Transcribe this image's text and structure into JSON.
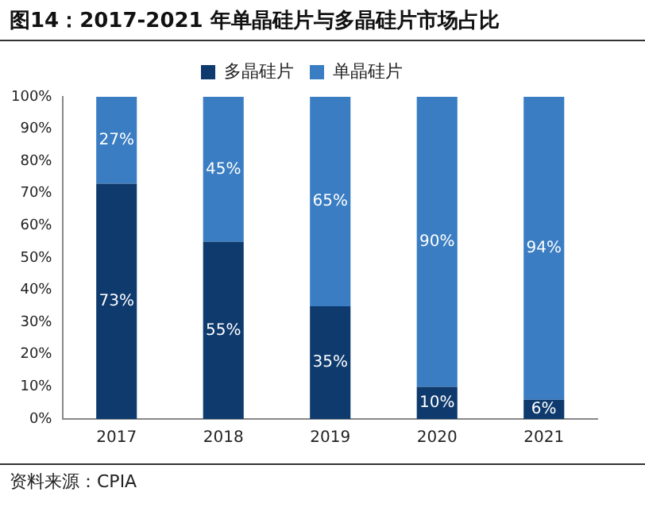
{
  "chart_data": {
    "type": "bar",
    "title": "图14：2017-2021 年单晶硅片与多晶硅片市场占比",
    "categories": [
      "2017",
      "2018",
      "2019",
      "2020",
      "2021"
    ],
    "stacked": true,
    "series": [
      {
        "name": "多晶硅片",
        "color": "#0e3a6e",
        "values": [
          73,
          55,
          35,
          10,
          6
        ],
        "value_labels": [
          "73%",
          "55%",
          "35%",
          "10%",
          "6%"
        ]
      },
      {
        "name": "单晶硅片",
        "color": "#3a7dc2",
        "values": [
          27,
          45,
          65,
          90,
          94
        ],
        "value_labels": [
          "27%",
          "45%",
          "65%",
          "90%",
          "94%"
        ]
      }
    ],
    "ylim": [
      0,
      100
    ],
    "yticks": [
      {
        "value": 0,
        "label": "0%"
      },
      {
        "value": 10,
        "label": "10%"
      },
      {
        "value": 20,
        "label": "20%"
      },
      {
        "value": 30,
        "label": "30%"
      },
      {
        "value": 40,
        "label": "40%"
      },
      {
        "value": 50,
        "label": "50%"
      },
      {
        "value": 60,
        "label": "60%"
      },
      {
        "value": 70,
        "label": "70%"
      },
      {
        "value": 80,
        "label": "80%"
      },
      {
        "value": 90,
        "label": "90%"
      },
      {
        "value": 100,
        "label": "100%"
      }
    ],
    "grid": false,
    "legend": "top",
    "annotations": [
      "资料来源：CPIA"
    ]
  }
}
